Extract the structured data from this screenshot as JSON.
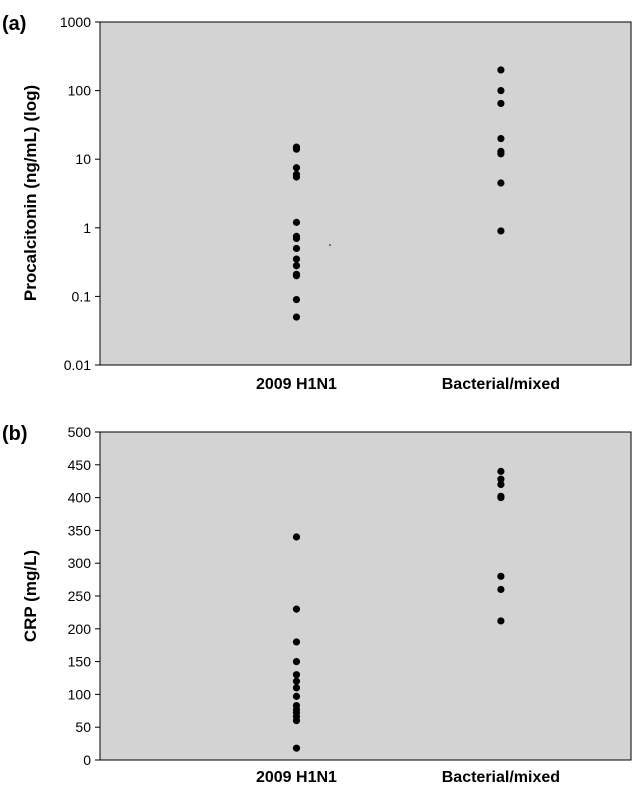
{
  "chart_data": [
    {
      "type": "scatter",
      "panel_label": "(a)",
      "ylabel": "Procalcitonin (ng/mL) (log)",
      "xlabel": "",
      "y_scale": "log",
      "ylim": [
        0.01,
        1000
      ],
      "y_ticks": [
        "0.01",
        "0.1",
        "1",
        "10",
        "100",
        "1000"
      ],
      "categories": [
        "2009 H1N1",
        "Bacterial/mixed"
      ],
      "grid": false,
      "legend": "none",
      "plot_background": "#d3d3d3",
      "marker_color": "#000000",
      "series": [
        {
          "category": "2009 H1N1",
          "values": [
            15,
            14,
            7.5,
            6,
            5.5,
            1.2,
            0.75,
            0.7,
            0.5,
            0.35,
            0.28,
            0.21,
            0.2,
            0.09,
            0.05
          ]
        },
        {
          "category": "Bacterial/mixed",
          "values": [
            200,
            100,
            65,
            20,
            13,
            12,
            4.5,
            0.9
          ]
        }
      ]
    },
    {
      "type": "scatter",
      "panel_label": "(b)",
      "ylabel": "CRP (mg/L)",
      "xlabel": "",
      "y_scale": "linear",
      "ylim": [
        0,
        500
      ],
      "y_ticks": [
        "0",
        "50",
        "100",
        "150",
        "200",
        "250",
        "300",
        "350",
        "400",
        "450",
        "500"
      ],
      "categories": [
        "2009 H1N1",
        "Bacterial/mixed"
      ],
      "grid": false,
      "legend": "none",
      "plot_background": "#d3d3d3",
      "marker_color": "#000000",
      "series": [
        {
          "category": "2009 H1N1",
          "values": [
            340,
            230,
            180,
            150,
            130,
            120,
            110,
            97,
            83,
            77,
            72,
            66,
            60,
            18
          ]
        },
        {
          "category": "Bacterial/mixed",
          "values": [
            440,
            428,
            420,
            402,
            400,
            280,
            260,
            212
          ]
        }
      ]
    }
  ]
}
